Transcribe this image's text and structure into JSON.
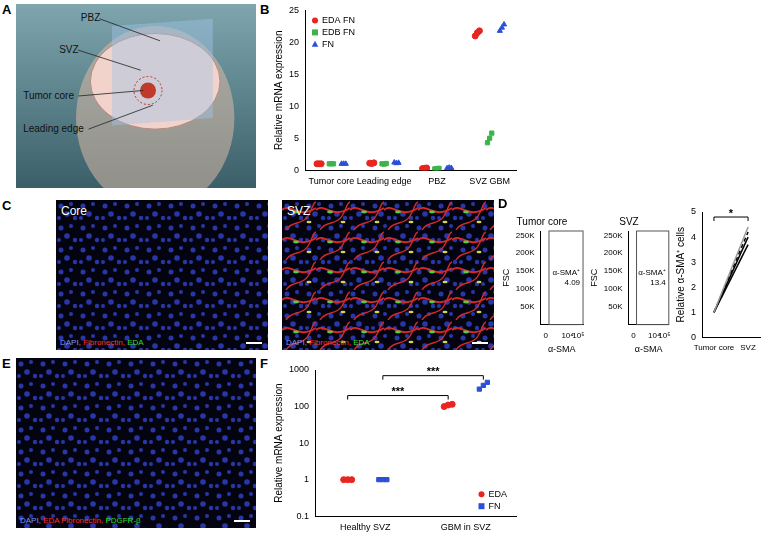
{
  "images": [
    {
      "panel": "A",
      "type": "illustration",
      "labels": [
        "PBZ",
        "SVZ",
        "Tumor core",
        "Leading edge"
      ]
    },
    {
      "panel": "C",
      "type": "micrograph",
      "frames": [
        {
          "title": "Core",
          "caption": [
            {
              "text": "DAPI,",
              "color": "#7f95ff"
            },
            {
              "text": "Fibronectin,",
              "color": "#ff3030"
            },
            {
              "text": "EDA",
              "color": "#33dd33"
            }
          ]
        },
        {
          "title": "SVZ",
          "caption": [
            {
              "text": "DAPI,",
              "color": "#7f95ff"
            },
            {
              "text": "Fibronectin,",
              "color": "#ff3030"
            },
            {
              "text": "EDA",
              "color": "#33dd33"
            }
          ]
        }
      ]
    },
    {
      "panel": "E",
      "type": "micrograph",
      "frames": [
        {
          "caption": [
            {
              "text": "DAPI,",
              "color": "#7f95ff"
            },
            {
              "text": "EDA Fibronectin,",
              "color": "#ff3030"
            },
            {
              "text": "PDGFR-β",
              "color": "#33dd33"
            }
          ]
        }
      ]
    }
  ],
  "chart_data": [
    {
      "panel": "B",
      "type": "scatter",
      "categories": [
        "Tumor core",
        "Leading edge",
        "PBZ",
        "SVZ GBM"
      ],
      "y_label": "Relative mRNA expression",
      "ylim": [
        0,
        25
      ],
      "yticks": [
        0,
        5,
        10,
        15,
        20,
        25
      ],
      "grid": false,
      "legend": "top-left",
      "series": [
        {
          "name": "EDA FN",
          "color": "#e8251f",
          "marker": "circle",
          "values": [
            [
              1,
              1,
              1
            ],
            [
              1.1,
              1.05,
              1.15
            ],
            [
              0.25,
              0.3,
              0.35
            ],
            [
              21.0,
              21.5,
              21.8
            ]
          ]
        },
        {
          "name": "EDB FN",
          "color": "#3cb44b",
          "marker": "square",
          "values": [
            [
              1,
              1,
              1
            ],
            [
              1,
              0.95,
              1.05
            ],
            [
              0.2,
              0.25,
              0.3
            ],
            [
              4.3,
              5.0,
              5.8
            ]
          ]
        },
        {
          "name": "FN",
          "color": "#2b4fd8",
          "marker": "triangle",
          "values": [
            [
              1,
              1,
              1
            ],
            [
              1.2,
              1.1,
              1.15
            ],
            [
              0.3,
              0.4,
              0.35
            ],
            [
              21.8,
              22.3,
              22.8
            ]
          ]
        }
      ]
    },
    {
      "panel": "D",
      "type": "scatter",
      "title": "Tumor core",
      "x_label": "α-SMA",
      "y_label": "FSC",
      "log": "x",
      "xlim": [
        -200,
        262144
      ],
      "xticks": [
        0,
        {
          "value": 10000,
          "label": "10⁴"
        },
        {
          "value": 100000,
          "label": "10⁵"
        }
      ],
      "ylim": [
        0,
        262144
      ],
      "yticks": [
        {
          "value": 50000,
          "label": "50K"
        },
        {
          "value": 100000,
          "label": "100K"
        },
        {
          "value": 150000,
          "label": "150K"
        },
        {
          "value": 200000,
          "label": "200K"
        },
        {
          "value": 250000,
          "label": "250K"
        }
      ],
      "grid": false,
      "gate": {
        "label": "α-SMA⁺",
        "value": 4.09,
        "x": [
          100,
          262144
        ],
        "y": [
          0,
          262144
        ]
      }
    },
    {
      "type": "scatter",
      "title": "SVZ",
      "x_label": "α-SMA",
      "y_label": "FSC",
      "log": "x",
      "xlim": [
        -200,
        262144
      ],
      "xticks": [
        0,
        {
          "value": 10000,
          "label": "10⁴"
        },
        {
          "value": 100000,
          "label": "10⁵"
        }
      ],
      "ylim": [
        0,
        262144
      ],
      "yticks": [
        {
          "value": 50000,
          "label": "50K"
        },
        {
          "value": 100000,
          "label": "100K"
        },
        {
          "value": 150000,
          "label": "150K"
        },
        {
          "value": 200000,
          "label": "200K"
        },
        {
          "value": 250000,
          "label": "250K"
        }
      ],
      "grid": false,
      "gate": {
        "label": "α-SMA⁺",
        "value": 13.4,
        "x": [
          100,
          262144
        ],
        "y": [
          0,
          262144
        ]
      }
    },
    {
      "type": "line",
      "categories": [
        "Tumor core",
        "SVZ"
      ],
      "y_label": "Relative α-SMA⁺ cells",
      "ylim": [
        0,
        5
      ],
      "yticks": [
        0,
        1,
        2,
        3,
        4,
        5
      ],
      "grid": false,
      "series": [
        {
          "color": "#999999",
          "line_style": "solid",
          "values": [
            1,
            4.4
          ]
        },
        {
          "color": "#000000",
          "line_style": "dashed",
          "values": [
            1,
            4.2
          ]
        },
        {
          "color": "#000000",
          "line_style": "solid",
          "values": [
            1,
            4.0
          ]
        },
        {
          "color": "#000000",
          "line_style": "solid",
          "values": [
            1,
            3.7
          ]
        }
      ],
      "annotations": [
        {
          "text": "*",
          "from": "Tumor core",
          "to": "SVZ",
          "y": 4.8
        }
      ]
    },
    {
      "panel": "F",
      "type": "scatter",
      "categories": [
        "Healthy SVZ",
        "GBM in SVZ"
      ],
      "y_label": "Relative mRNA expression",
      "log": "y",
      "ylim": [
        0.1,
        1000
      ],
      "yticks": [
        0.1,
        1,
        10,
        100,
        1000
      ],
      "grid": false,
      "legend": "bottom-right",
      "series": [
        {
          "name": "EDA",
          "color": "#e8251f",
          "marker": "circle",
          "values": [
            [
              1,
              1,
              1
            ],
            [
              100,
              110,
              115
            ]
          ]
        },
        {
          "name": "FN",
          "color": "#2b4fd8",
          "marker": "square",
          "values": [
            [
              1,
              1,
              1
            ],
            [
              300,
              380,
              460
            ]
          ]
        }
      ],
      "annotations": [
        {
          "text": "***",
          "from": "Healthy SVZ",
          "to": "GBM in SVZ",
          "series": "EDA",
          "y": 200
        },
        {
          "text": "***",
          "from": "Healthy SVZ",
          "to": "GBM in SVZ",
          "series": "FN",
          "y": 700
        }
      ]
    }
  ]
}
